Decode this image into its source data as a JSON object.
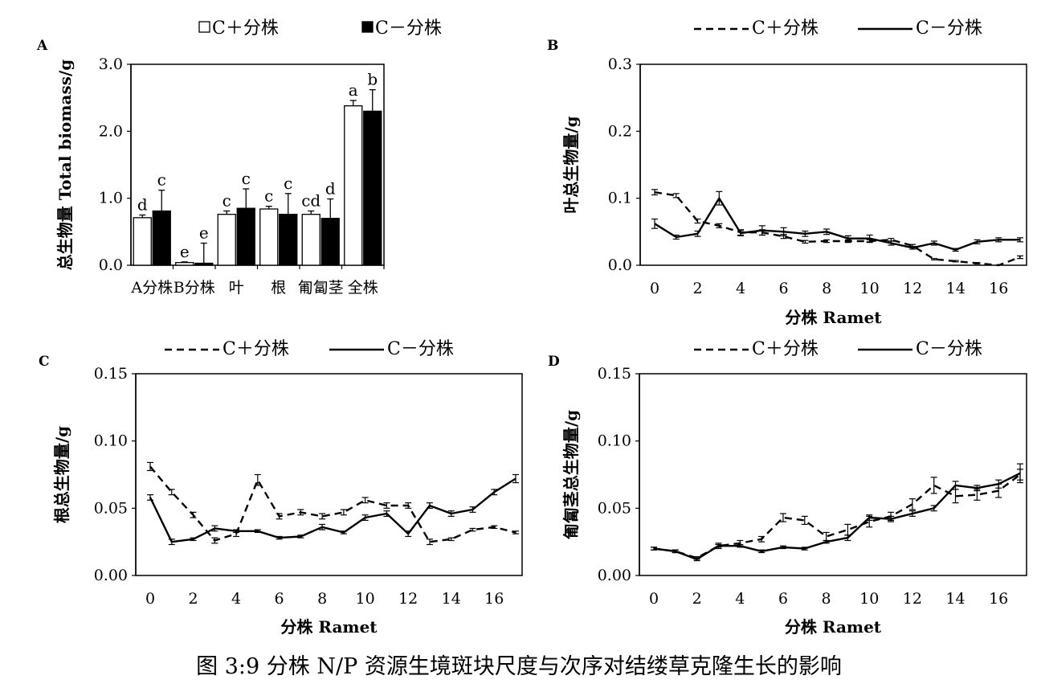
{
  "caption": "图 3:9 分株 N/P 资源生境斑块尺度与次序对结缕草克隆生长的影响",
  "legend_bar": {
    "plus": "C＋分株",
    "minus": "C－分株"
  },
  "legend_line": {
    "plus": "C＋分株",
    "minus": "C－分株"
  },
  "colors": {
    "plus_fill": "#ffffff",
    "minus_fill": "#000000",
    "stroke": "#000000"
  },
  "chart_data": [
    {
      "id": "A",
      "type": "bar",
      "panel_letter": "A",
      "ylabel": "总生物量 Total biomass/g",
      "xlabel": "",
      "ylim": [
        0,
        3.0
      ],
      "yticks": [
        "0.0",
        "1.0",
        "2.0",
        "3.0"
      ],
      "categories": [
        "A分株",
        "B分株",
        "叶",
        "根",
        "匍匐茎",
        "全株"
      ],
      "series": [
        {
          "name": "C＋分株",
          "values": [
            0.71,
            0.04,
            0.76,
            0.84,
            0.76,
            2.38
          ],
          "errors": [
            0.04,
            0.01,
            0.05,
            0.04,
            0.05,
            0.08
          ],
          "letters": [
            "d",
            "e",
            "c",
            "c",
            "cd",
            "a"
          ]
        },
        {
          "name": "C－分株",
          "values": [
            0.81,
            0.03,
            0.85,
            0.76,
            0.7,
            2.3
          ],
          "errors": [
            0.31,
            0.3,
            0.29,
            0.31,
            0.29,
            0.32
          ],
          "letters": [
            "c",
            "e",
            "c",
            "c",
            "d",
            "b"
          ]
        }
      ]
    },
    {
      "id": "B",
      "type": "line",
      "panel_letter": "B",
      "ylabel": "叶总生物量/g",
      "xlabel": "分株 Ramet",
      "ylim": [
        0,
        0.3
      ],
      "yticks": [
        "0.0",
        "0.1",
        "0.2",
        "0.3"
      ],
      "xlim": [
        0,
        17
      ],
      "xticks": [
        "0",
        "2",
        "4",
        "6",
        "8",
        "10",
        "12",
        "14",
        "16"
      ],
      "x": [
        0,
        1,
        2,
        3,
        4,
        5,
        6,
        7,
        8,
        9,
        10,
        11,
        12,
        13,
        14,
        15,
        16,
        17
      ],
      "series": [
        {
          "name": "C＋分株",
          "style": "dashed",
          "values": [
            0.109,
            0.104,
            0.066,
            0.059,
            0.049,
            0.049,
            0.043,
            0.035,
            0.036,
            0.036,
            0.036,
            0.038,
            0.029,
            0.009,
            0.006,
            0.003,
            0.0,
            0.012
          ],
          "errors": [
            0.004,
            0.003,
            0.003,
            0.003,
            0.004,
            0.004,
            0.003,
            0.002,
            0.002,
            0.002,
            0.002,
            0.002,
            0.002,
            0.001,
            0.001,
            0.001,
            0.0,
            0.002
          ]
        },
        {
          "name": "C－分株",
          "style": "solid",
          "values": [
            0.062,
            0.042,
            0.047,
            0.1,
            0.048,
            0.052,
            0.05,
            0.047,
            0.05,
            0.04,
            0.04,
            0.033,
            0.026,
            0.033,
            0.023,
            0.035,
            0.038,
            0.038
          ],
          "errors": [
            0.007,
            0.003,
            0.004,
            0.01,
            0.004,
            0.007,
            0.006,
            0.004,
            0.004,
            0.004,
            0.005,
            0.003,
            0.002,
            0.003,
            0.002,
            0.003,
            0.003,
            0.003
          ]
        }
      ]
    },
    {
      "id": "C",
      "type": "line",
      "panel_letter": "C",
      "ylabel": "根总生物量/g",
      "xlabel": "分株 Ramet",
      "ylim": [
        0,
        0.15
      ],
      "yticks": [
        "0.00",
        "0.05",
        "0.10",
        "0.15"
      ],
      "xlim": [
        0,
        17
      ],
      "xticks": [
        "0",
        "2",
        "4",
        "6",
        "8",
        "10",
        "12",
        "14",
        "16"
      ],
      "x": [
        0,
        1,
        2,
        3,
        4,
        5,
        6,
        7,
        8,
        9,
        10,
        11,
        12,
        13,
        14,
        15,
        16,
        17
      ],
      "series": [
        {
          "name": "C＋分株",
          "style": "dashed",
          "values": [
            0.081,
            0.062,
            0.045,
            0.026,
            0.031,
            0.071,
            0.044,
            0.047,
            0.044,
            0.047,
            0.056,
            0.052,
            0.052,
            0.025,
            0.027,
            0.034,
            0.036,
            0.032
          ],
          "errors": [
            0.003,
            0.002,
            0.002,
            0.002,
            0.002,
            0.004,
            0.002,
            0.002,
            0.002,
            0.002,
            0.002,
            0.002,
            0.002,
            0.002,
            0.001,
            0.001,
            0.001,
            0.001
          ]
        },
        {
          "name": "C－分株",
          "style": "solid",
          "values": [
            0.058,
            0.025,
            0.027,
            0.035,
            0.033,
            0.033,
            0.028,
            0.029,
            0.036,
            0.032,
            0.043,
            0.046,
            0.031,
            0.052,
            0.046,
            0.049,
            0.062,
            0.072
          ],
          "errors": [
            0.002,
            0.002,
            0.001,
            0.002,
            0.001,
            0.001,
            0.001,
            0.001,
            0.002,
            0.001,
            0.002,
            0.002,
            0.002,
            0.002,
            0.002,
            0.002,
            0.002,
            0.003
          ]
        }
      ]
    },
    {
      "id": "D",
      "type": "line",
      "panel_letter": "D",
      "ylabel": "匍匐茎总生物量/g",
      "xlabel": "分株 Ramet",
      "ylim": [
        0,
        0.15
      ],
      "yticks": [
        "0.00",
        "0.05",
        "0.10",
        "0.15"
      ],
      "xlim": [
        0,
        17
      ],
      "xticks": [
        "0",
        "2",
        "4",
        "6",
        "8",
        "10",
        "12",
        "14",
        "16"
      ],
      "x": [
        0,
        1,
        2,
        3,
        4,
        5,
        6,
        7,
        8,
        9,
        10,
        11,
        12,
        13,
        14,
        15,
        16,
        17
      ],
      "series": [
        {
          "name": "C＋分株",
          "style": "dashed",
          "values": [
            0.02,
            0.018,
            0.013,
            0.022,
            0.024,
            0.027,
            0.043,
            0.041,
            0.029,
            0.034,
            0.04,
            0.044,
            0.053,
            0.067,
            0.059,
            0.06,
            0.063,
            0.075
          ],
          "errors": [
            0.001,
            0.001,
            0.001,
            0.002,
            0.002,
            0.002,
            0.003,
            0.003,
            0.003,
            0.004,
            0.004,
            0.003,
            0.004,
            0.006,
            0.005,
            0.004,
            0.005,
            0.004
          ]
        },
        {
          "name": "C－分株",
          "style": "solid",
          "values": [
            0.02,
            0.018,
            0.012,
            0.022,
            0.022,
            0.018,
            0.021,
            0.02,
            0.025,
            0.028,
            0.043,
            0.042,
            0.046,
            0.05,
            0.067,
            0.065,
            0.068,
            0.076
          ],
          "errors": [
            0.001,
            0.001,
            0.001,
            0.001,
            0.001,
            0.001,
            0.001,
            0.001,
            0.001,
            0.002,
            0.002,
            0.002,
            0.002,
            0.002,
            0.003,
            0.002,
            0.003,
            0.007
          ]
        }
      ]
    }
  ]
}
